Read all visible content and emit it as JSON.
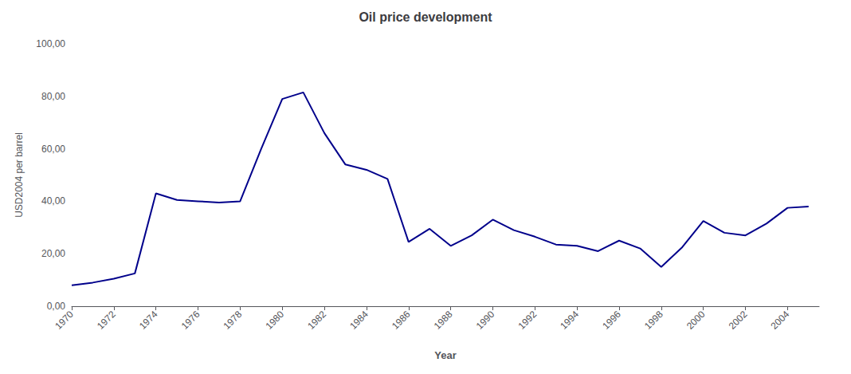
{
  "chart_data": {
    "type": "line",
    "title": "Oil price development",
    "xlabel": "Year",
    "ylabel": "USD2004 per barrel",
    "color": "#00008B",
    "x": [
      1970,
      1971,
      1972,
      1973,
      1974,
      1975,
      1976,
      1977,
      1978,
      1979,
      1980,
      1981,
      1982,
      1983,
      1984,
      1985,
      1986,
      1987,
      1988,
      1989,
      1990,
      1991,
      1992,
      1993,
      1994,
      1995,
      1996,
      1997,
      1998,
      1999,
      2000,
      2001,
      2002,
      2003,
      2004,
      2005
    ],
    "values": [
      8.0,
      9.0,
      10.5,
      12.5,
      43.0,
      40.5,
      40.0,
      39.5,
      40.0,
      60.0,
      79.0,
      81.5,
      66.0,
      54.0,
      52.0,
      48.5,
      24.5,
      29.5,
      23.0,
      27.0,
      33.0,
      29.0,
      26.5,
      23.5,
      23.0,
      21.0,
      25.0,
      22.0,
      15.0,
      22.5,
      32.5,
      28.0,
      27.0,
      31.5,
      37.5,
      38.0
    ],
    "xlim": [
      1970,
      2005.5
    ],
    "xticks": [
      1970,
      1972,
      1974,
      1976,
      1978,
      1980,
      1982,
      1984,
      1986,
      1988,
      1990,
      1992,
      1994,
      1996,
      1998,
      2000,
      2002,
      2004
    ],
    "ylim": [
      0,
      100
    ],
    "yticks": [
      {
        "value": 0,
        "label": "0,00"
      },
      {
        "value": 20,
        "label": "20,00"
      },
      {
        "value": 40,
        "label": "40,00"
      },
      {
        "value": 60,
        "label": "60,00"
      },
      {
        "value": 80,
        "label": "80,00"
      },
      {
        "value": 100,
        "label": "100,00"
      }
    ],
    "grid": false
  }
}
